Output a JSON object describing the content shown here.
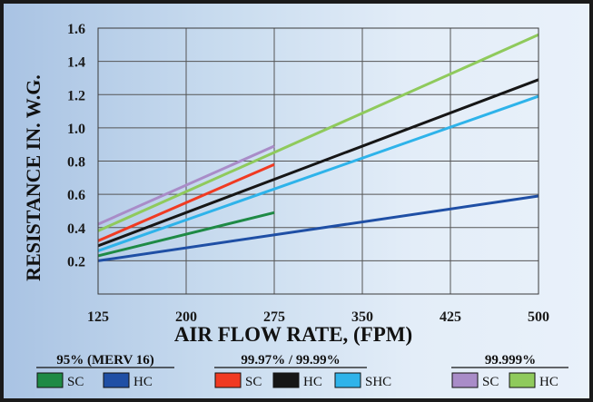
{
  "chart_data": {
    "type": "line",
    "xlabel": "AIR FLOW RATE, (FPM)",
    "ylabel": "RESISTANCE IN. W.G.",
    "xlim": [
      125,
      500
    ],
    "ylim": [
      0,
      1.6
    ],
    "x_ticks": [
      "125",
      "200",
      "275",
      "350",
      "425",
      "500"
    ],
    "y_ticks": [
      "0.2",
      "0.4",
      "0.6",
      "0.8",
      "1.0",
      "1.2",
      "1.4",
      "1.6"
    ],
    "grid": true,
    "series": [
      {
        "name": "SC",
        "group": "95% (MERV 16)",
        "color": "#1e8a45",
        "x": [
          125,
          275
        ],
        "y": [
          0.23,
          0.49
        ]
      },
      {
        "name": "HC",
        "group": "95% (MERV 16)",
        "color": "#1f4fa5",
        "x": [
          125,
          500
        ],
        "y": [
          0.2,
          0.59
        ]
      },
      {
        "name": "SC",
        "group": "99.97% / 99.99%",
        "color": "#f03a22",
        "x": [
          125,
          275
        ],
        "y": [
          0.32,
          0.78
        ]
      },
      {
        "name": "HC",
        "group": "99.97% / 99.99%",
        "color": "#161616",
        "x": [
          125,
          500
        ],
        "y": [
          0.29,
          1.29
        ]
      },
      {
        "name": "SHC",
        "group": "99.97% / 99.99%",
        "color": "#2eb3ea",
        "x": [
          125,
          500
        ],
        "y": [
          0.26,
          1.19
        ]
      },
      {
        "name": "SC",
        "group": "99.999%",
        "color": "#a98cc8",
        "x": [
          125,
          275
        ],
        "y": [
          0.42,
          0.89
        ]
      },
      {
        "name": "HC",
        "group": "99.999%",
        "color": "#8fca5c",
        "x": [
          125,
          500
        ],
        "y": [
          0.38,
          1.56
        ]
      }
    ]
  },
  "legend": {
    "groups": [
      {
        "title": "95% (MERV 16)",
        "items": [
          {
            "label": "SC",
            "color": "#1e8a45"
          },
          {
            "label": "HC",
            "color": "#1f4fa5"
          }
        ]
      },
      {
        "title": "99.97% / 99.99%",
        "items": [
          {
            "label": "SC",
            "color": "#f03a22"
          },
          {
            "label": "HC",
            "color": "#161616"
          },
          {
            "label": "SHC",
            "color": "#2eb3ea"
          }
        ]
      },
      {
        "title": "99.999%",
        "items": [
          {
            "label": "SC",
            "color": "#a98cc8"
          },
          {
            "label": "HC",
            "color": "#8fca5c"
          }
        ]
      }
    ]
  }
}
